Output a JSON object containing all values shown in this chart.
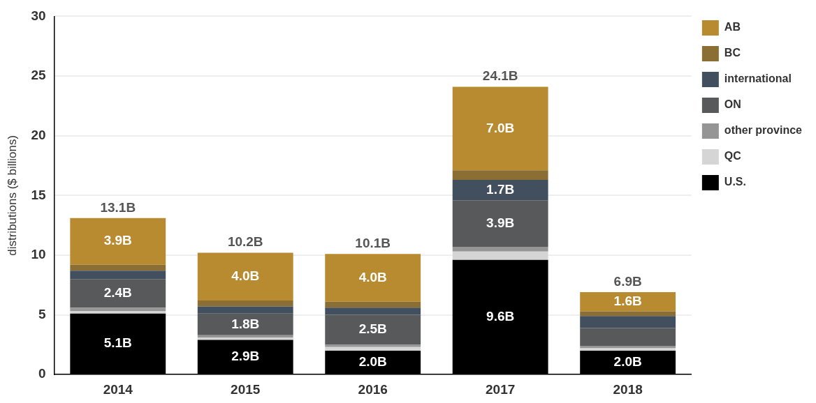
{
  "chart_data": {
    "type": "bar",
    "stacked": true,
    "ylabel": "distributions ($ billions)",
    "categories": [
      "2014",
      "2015",
      "2016",
      "2017",
      "2018"
    ],
    "ylim": [
      0,
      30
    ],
    "yticks": [
      0,
      5,
      10,
      15,
      20,
      25,
      30
    ],
    "grid": "y",
    "legend": "top right",
    "series": [
      {
        "name": "U.S.",
        "color": "#000000",
        "values": [
          5.1,
          2.9,
          2.0,
          9.6,
          2.0
        ],
        "value_labels": [
          "5.1B",
          "2.9B",
          "2.0B",
          "9.6B",
          "2.0B"
        ]
      },
      {
        "name": "QC",
        "color": "#d5d5d5",
        "values": [
          0.2,
          0.2,
          0.3,
          0.7,
          0.2
        ]
      },
      {
        "name": "other province",
        "color": "#959595",
        "values": [
          0.3,
          0.2,
          0.2,
          0.4,
          0.2
        ]
      },
      {
        "name": "ON",
        "color": "#58595b",
        "values": [
          2.4,
          1.8,
          2.5,
          3.9,
          1.5
        ],
        "value_labels": [
          "2.4B",
          "1.8B",
          "2.5B",
          "3.9B",
          null
        ]
      },
      {
        "name": "international",
        "color": "#424f5e",
        "values": [
          0.7,
          0.6,
          0.6,
          1.7,
          1.0
        ],
        "value_labels": [
          null,
          null,
          null,
          "1.7B",
          null
        ]
      },
      {
        "name": "BC",
        "color": "#8b6e33",
        "values": [
          0.5,
          0.5,
          0.5,
          0.8,
          0.4
        ]
      },
      {
        "name": "AB",
        "color": "#b88b30",
        "values": [
          3.9,
          4.0,
          4.0,
          7.0,
          1.6
        ],
        "value_labels": [
          "3.9B",
          "4.0B",
          "4.0B",
          "7.0B",
          "1.6B"
        ]
      }
    ],
    "totals": [
      "13.1B",
      "10.2B",
      "10.1B",
      "24.1B",
      "6.9B"
    ]
  }
}
